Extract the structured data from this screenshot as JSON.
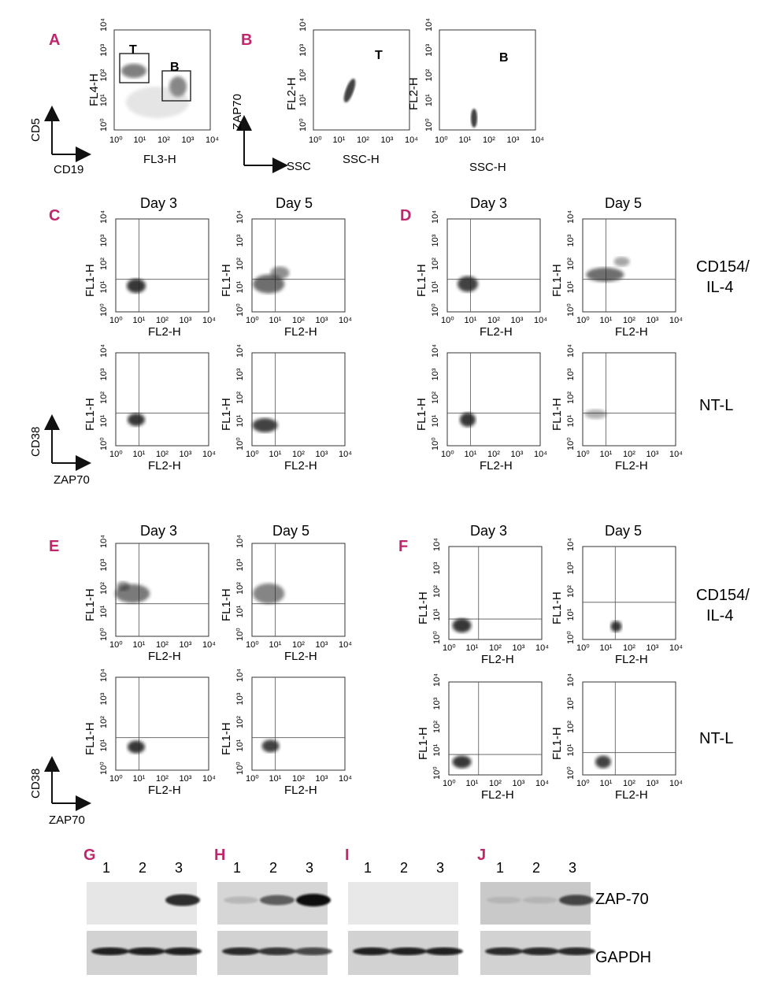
{
  "colors": {
    "panel_letter": "#c0266b",
    "ink": "#111111"
  },
  "ticks": [
    "10⁰",
    "10¹",
    "10²",
    "10³",
    "10⁴"
  ],
  "tick_short": {
    "x": "10⁰   10¹10²   10³10⁴"
  },
  "panels": {
    "A": {
      "letter": "A",
      "xlabel": "FL3-H",
      "ylabel": "FL4-H",
      "gate_t": "T",
      "gate_b": "B",
      "axis_y": "CD5",
      "axis_x": "CD19"
    },
    "B": {
      "letter": "B",
      "xlabel": "SSC-H",
      "ylabel": "FL2-H",
      "plot_t": "T",
      "plot_b": "B",
      "axis_y": "ZAP70",
      "axis_x": "SSC"
    },
    "C": {
      "letter": "C"
    },
    "D": {
      "letter": "D"
    },
    "E": {
      "letter": "E"
    },
    "F": {
      "letter": "F"
    },
    "G": {
      "letter": "G"
    },
    "H": {
      "letter": "H"
    },
    "I": {
      "letter": "I"
    },
    "J": {
      "letter": "J"
    }
  },
  "days": {
    "d3": "Day 3",
    "d5": "Day 5"
  },
  "flow": {
    "xlabel": "FL2-H",
    "ylabel": "FL1-H",
    "axis_y": "CD38",
    "axis_x": "ZAP70"
  },
  "conditions": {
    "stim_line1": "CD154/",
    "stim_line2": "IL-4",
    "control": "NT-L"
  },
  "blot": {
    "lanes": [
      "1",
      "2",
      "3"
    ],
    "band_top": "ZAP-70",
    "band_bottom": "GAPDH"
  }
}
